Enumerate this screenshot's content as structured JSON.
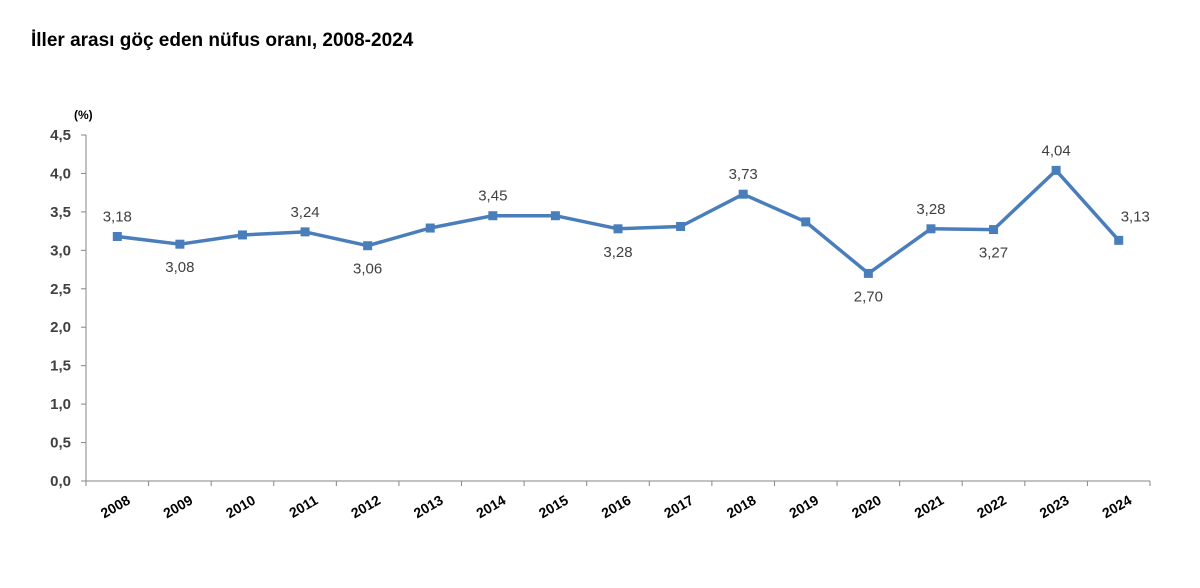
{
  "title": "İller arası göç eden nüfus oranı, 2008-2024",
  "chart_data": {
    "type": "line",
    "title": "İller arası göç eden nüfus oranı, 2008-2024",
    "unit_label": "(%)",
    "xlabel": "",
    "ylabel": "",
    "categories": [
      "2008",
      "2009",
      "2010",
      "2011",
      "2012",
      "2013",
      "2014",
      "2015",
      "2016",
      "2017",
      "2018",
      "2019",
      "2020",
      "2021",
      "2022",
      "2023",
      "2024"
    ],
    "series": [
      {
        "values": [
          3.18,
          3.08,
          3.2,
          3.24,
          3.06,
          3.29,
          3.45,
          3.45,
          3.28,
          3.31,
          3.73,
          3.37,
          2.7,
          3.28,
          3.27,
          4.04,
          3.13
        ],
        "color": "#4a7ebb"
      }
    ],
    "data_labels": [
      {
        "index": 0,
        "text": "3,18",
        "position": "above"
      },
      {
        "index": 1,
        "text": "3,08",
        "position": "below"
      },
      {
        "index": 3,
        "text": "3,24",
        "position": "above"
      },
      {
        "index": 4,
        "text": "3,06",
        "position": "below"
      },
      {
        "index": 6,
        "text": "3,45",
        "position": "above"
      },
      {
        "index": 8,
        "text": "3,28",
        "position": "below"
      },
      {
        "index": 10,
        "text": "3,73",
        "position": "above"
      },
      {
        "index": 12,
        "text": "2,70",
        "position": "below"
      },
      {
        "index": 13,
        "text": "3,28",
        "position": "above"
      },
      {
        "index": 14,
        "text": "3,27",
        "position": "below"
      },
      {
        "index": 15,
        "text": "4,04",
        "position": "above"
      },
      {
        "index": 16,
        "text": "3,13",
        "position": "right"
      }
    ],
    "yticks": [
      "0,0",
      "0,5",
      "1,0",
      "1,5",
      "2,0",
      "2,5",
      "3,0",
      "3,5",
      "4,0",
      "4,5"
    ],
    "ylim": [
      0,
      4.5
    ],
    "grid": false,
    "legend": "none"
  }
}
